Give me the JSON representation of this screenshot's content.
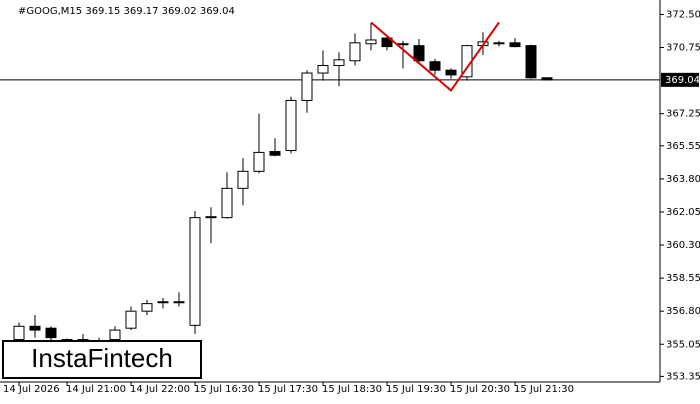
{
  "chart_data": {
    "type": "candlestick",
    "title": "#GOOG,M15  369.15 369.17 369.02 369.04",
    "categories": [
      "14 Jul 2026",
      null,
      null,
      "14 Jul 21:00",
      null,
      null,
      null,
      "14 Jul 22:00",
      null,
      null,
      null,
      "15 Jul 16:30",
      null,
      null,
      null,
      "15 Jul 17:30",
      null,
      null,
      null,
      "15 Jul 18:30",
      null,
      null,
      null,
      "15 Jul 19:30",
      null,
      null,
      null,
      "15 Jul 20:30",
      null,
      null,
      null,
      "15 Jul 21:30",
      null,
      null
    ],
    "open": [
      355.3,
      356.0,
      355.9,
      355.3,
      355.3,
      355.2,
      355.3,
      355.9,
      356.8,
      357.25,
      357.3,
      356.05,
      361.75,
      361.75,
      363.3,
      364.2,
      365.25,
      365.3,
      367.95,
      369.4,
      369.8,
      370.05,
      370.95,
      371.25,
      370.95,
      370.85,
      370.0,
      369.55,
      369.2,
      370.85,
      371.0,
      371.0,
      370.85,
      369.15
    ],
    "high": [
      356.2,
      356.6,
      356.0,
      355.35,
      355.6,
      355.4,
      356.0,
      357.05,
      357.4,
      357.5,
      357.8,
      362.1,
      362.3,
      364.15,
      364.9,
      367.25,
      365.95,
      368.15,
      369.55,
      370.6,
      370.5,
      371.5,
      372.05,
      371.35,
      371.1,
      371.2,
      370.15,
      369.65,
      370.9,
      371.55,
      371.1,
      371.25,
      370.9,
      369.17
    ],
    "low": [
      355.0,
      355.4,
      355.1,
      355.0,
      355.0,
      355.0,
      355.1,
      355.8,
      356.6,
      356.95,
      357.05,
      355.6,
      360.4,
      361.7,
      362.4,
      364.1,
      365.0,
      365.15,
      367.3,
      369.0,
      368.7,
      369.8,
      370.6,
      370.6,
      369.65,
      369.9,
      369.3,
      369.1,
      369.0,
      370.35,
      370.8,
      370.75,
      369.1,
      369.02
    ],
    "close": [
      356.0,
      355.8,
      355.4,
      355.2,
      355.3,
      355.25,
      355.8,
      356.8,
      357.2,
      357.3,
      357.3,
      361.75,
      361.8,
      363.3,
      364.2,
      365.2,
      365.05,
      367.95,
      369.4,
      369.8,
      370.1,
      371.0,
      371.15,
      370.8,
      370.95,
      370.05,
      369.55,
      369.3,
      370.85,
      371.05,
      371.0,
      370.8,
      369.15,
      369.04
    ],
    "bull_color": "#ffffff",
    "bear_color": "#000000",
    "ylim": [
      353.0,
      373.0
    ],
    "yticks": [
      {
        "value": 372.5,
        "label": "372.50"
      },
      370.75,
      367.25,
      365.55,
      {
        "value": 363.8,
        "label": "363.80"
      },
      362.05,
      {
        "value": 360.3,
        "label": "360.30"
      },
      358.55,
      {
        "value": 356.8,
        "label": "356.80"
      },
      355.05,
      353.35
    ],
    "last_price": 369.04,
    "pattern": {
      "color": "#e00000",
      "points": [
        {
          "index": 22,
          "value": 372.08
        },
        {
          "index": 27,
          "value": 368.48
        },
        {
          "index": 30,
          "value": 372.08
        }
      ]
    },
    "logo": "InstaFintech"
  }
}
